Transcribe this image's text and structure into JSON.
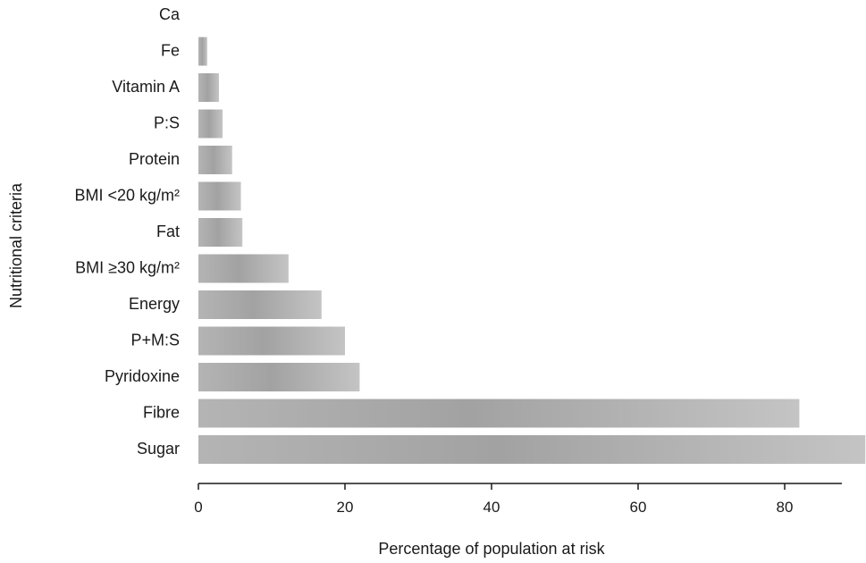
{
  "chart_data": {
    "type": "bar",
    "orientation": "horizontal",
    "title": "",
    "xlabel": "Percentage of population at risk",
    "ylabel": "Nutritional criteria",
    "categories": [
      "Ca",
      "Fe",
      "Vitamin A",
      "P:S",
      "Protein",
      "BMI <20 kg/m²",
      "Fat",
      "BMI ≥30 kg/m²",
      "Energy",
      "P+M:S",
      "Pyridoxine",
      "Fibre",
      "Sugar"
    ],
    "values": [
      0,
      1.2,
      2.8,
      3.3,
      4.6,
      5.8,
      6.0,
      12.3,
      16.8,
      20.0,
      22.0,
      82.0,
      91.0
    ],
    "xlim": [
      0,
      91
    ],
    "xticks": [
      0,
      20,
      40,
      60,
      80
    ],
    "grid": false,
    "legend": "none",
    "bar_color": "#a9a9a9"
  }
}
